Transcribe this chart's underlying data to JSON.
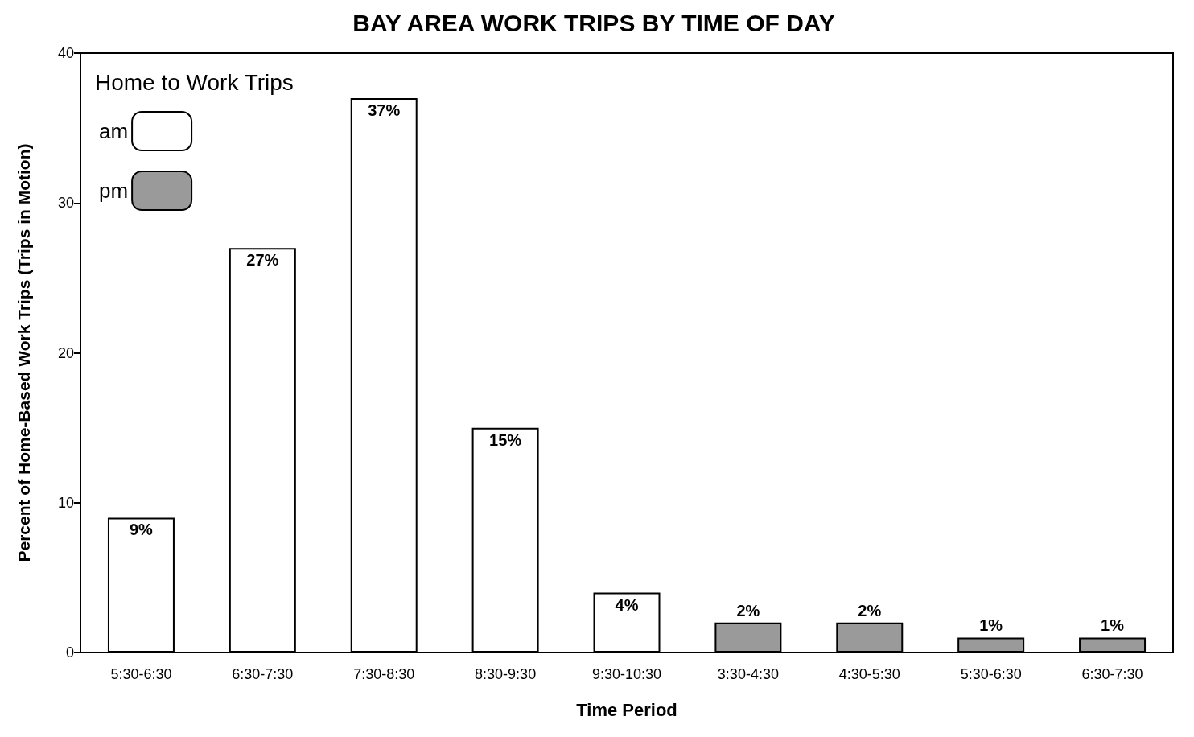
{
  "chart_data": {
    "type": "bar",
    "title": "BAY AREA WORK TRIPS BY TIME OF DAY",
    "xlabel": "Time Period",
    "ylabel": "Percent of Home-Based Work Trips (Trips in Motion)",
    "legend_title": "Home to Work Trips",
    "categories": [
      "5:30-6:30",
      "6:30-7:30",
      "7:30-8:30",
      "8:30-9:30",
      "9:30-10:30",
      "3:30-4:30",
      "4:30-5:30",
      "5:30-6:30",
      "6:30-7:30"
    ],
    "series": [
      {
        "name": "am",
        "color": "#ffffff",
        "values": [
          9,
          27,
          37,
          15,
          4,
          null,
          null,
          null,
          null
        ],
        "value_labels": [
          "9%",
          "27%",
          "37%",
          "15%",
          "4%",
          null,
          null,
          null,
          null
        ]
      },
      {
        "name": "pm",
        "color": "#9a9a9a",
        "values": [
          null,
          null,
          null,
          null,
          null,
          2,
          2,
          1,
          1
        ],
        "value_labels": [
          null,
          null,
          null,
          null,
          null,
          "2%",
          "2%",
          "1%",
          "1%"
        ]
      }
    ],
    "ylim": [
      0,
      40
    ],
    "yticks": [
      0,
      10,
      20,
      30,
      40
    ],
    "grid": false,
    "legend": "top left"
  }
}
